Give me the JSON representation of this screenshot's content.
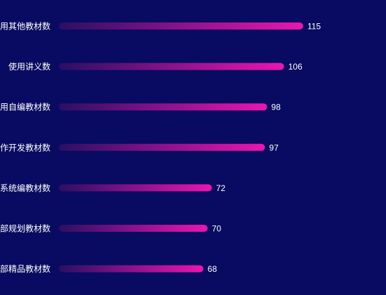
{
  "chart_data": {
    "type": "bar",
    "orientation": "horizontal",
    "categories": [
      "用其他教材数",
      "使用讲义数",
      "用自编教材数",
      "作开发教材数",
      "系统编教材数",
      "部规划教材数",
      "部精品教材数"
    ],
    "values": [
      115,
      106,
      98,
      97,
      72,
      70,
      68
    ],
    "title": "",
    "xlabel": "",
    "ylabel": "",
    "xlim": [
      0,
      120
    ],
    "grid": false,
    "legend": "none",
    "colors": {
      "background": "#080b61",
      "bar_track": "#0e1278",
      "bar_gradient_start": "#2a0f63",
      "bar_gradient_end": "#ec15b0",
      "text": "#ffffff"
    }
  }
}
